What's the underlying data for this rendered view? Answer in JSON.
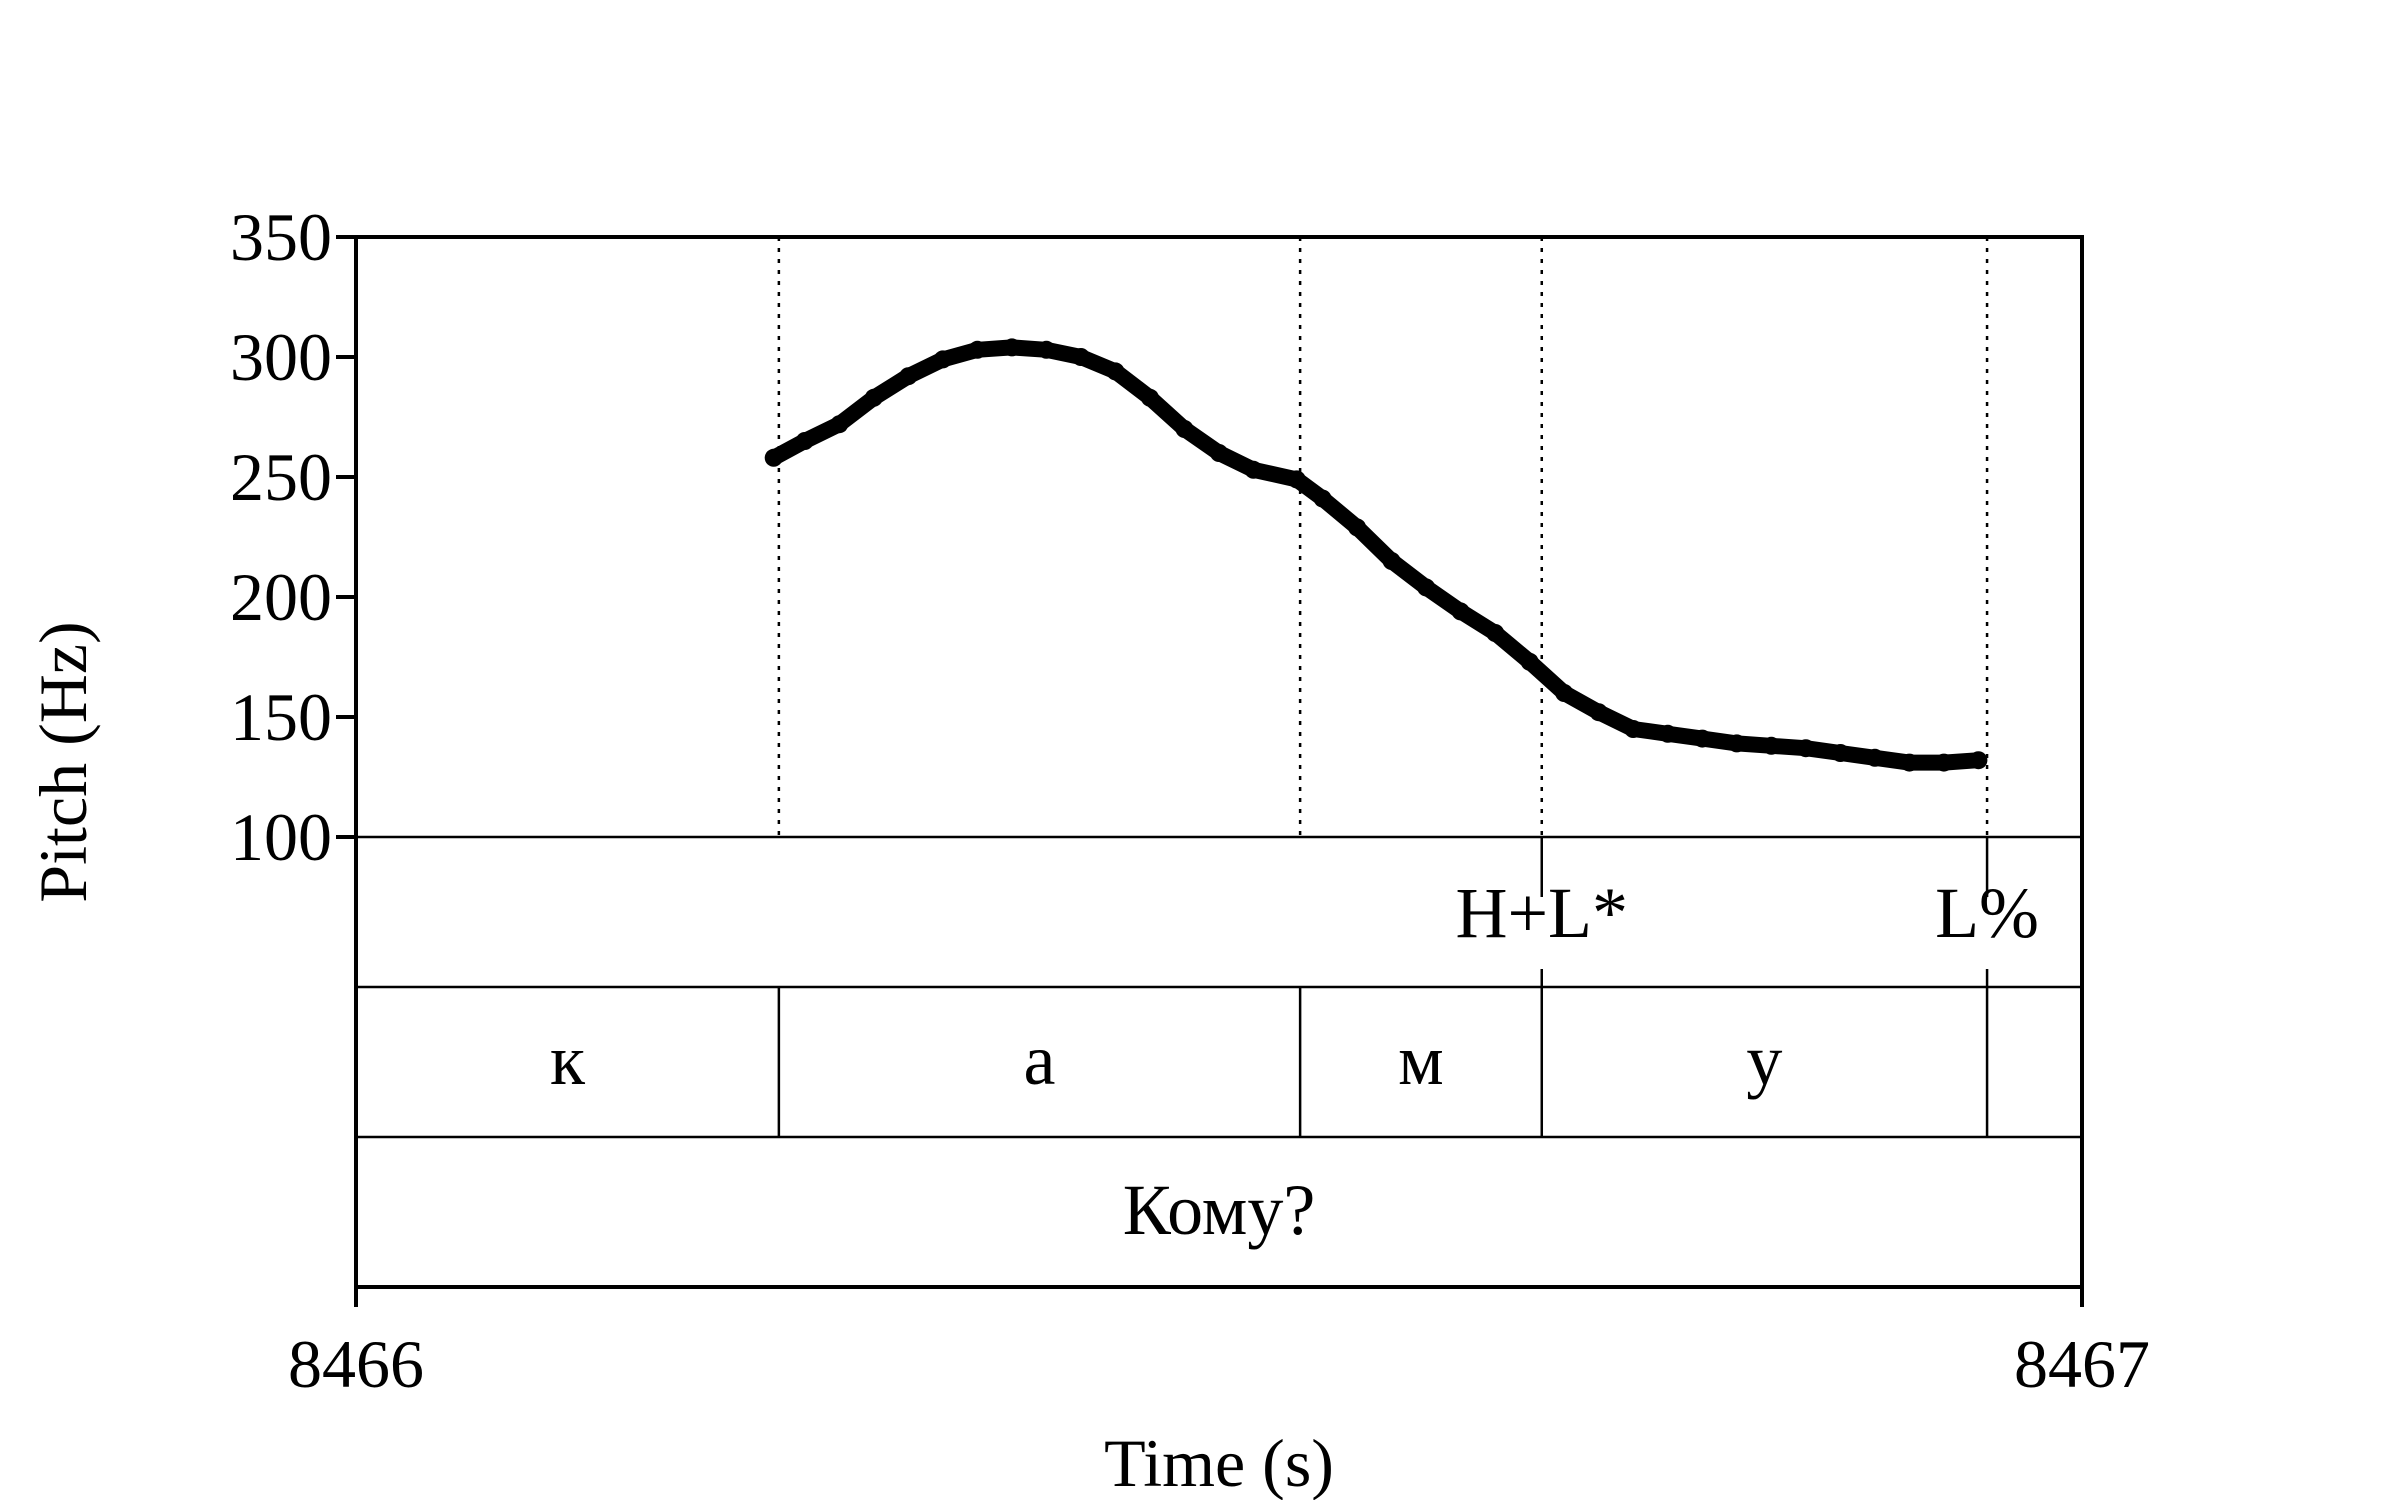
{
  "chart_data": {
    "type": "line",
    "xlabel": "Time (s)",
    "ylabel": "Pitch (Hz)",
    "xlim": [
      8466,
      8467
    ],
    "ylim": [
      100,
      350
    ],
    "x_ticks": [
      "8466",
      "8467"
    ],
    "y_ticks": [
      100,
      150,
      200,
      250,
      300,
      350
    ],
    "grid": false,
    "line_color": "#000000",
    "series": [
      {
        "x": [
          8466.242,
          8466.26,
          8466.28,
          8466.3,
          8466.32,
          8466.34,
          8466.36,
          8466.38,
          8466.4,
          8466.42,
          8466.44,
          8466.46,
          8466.48,
          8466.5,
          8466.52,
          8466.545,
          8466.56,
          8466.58,
          8466.6,
          8466.62,
          8466.64,
          8466.66,
          8466.68,
          8466.7,
          8466.72,
          8466.74,
          8466.76,
          8466.78,
          8466.8,
          8466.82,
          8466.84,
          8466.86,
          8466.88,
          8466.9,
          8466.92,
          8466.94
        ],
        "y": [
          258,
          265,
          272,
          283,
          292,
          299,
          303,
          304,
          303,
          300,
          294,
          283,
          270,
          260,
          253,
          249,
          241,
          229,
          215,
          204,
          194,
          185,
          173,
          160,
          152,
          145,
          143,
          141,
          139,
          138,
          137,
          135,
          133,
          131,
          131,
          132
        ]
      }
    ],
    "boundaries": [
      8466.245,
      8466.547,
      8466.687,
      8466.945
    ],
    "tiers": [
      {
        "type": "points",
        "labels": [
          {
            "text": "H+L*",
            "time": 8466.687
          },
          {
            "text": "L%",
            "time": 8466.945
          }
        ]
      },
      {
        "type": "intervals",
        "labels": [
          {
            "text": "к",
            "start": 8466.0,
            "end": 8466.245
          },
          {
            "text": "а",
            "start": 8466.245,
            "end": 8466.547
          },
          {
            "text": "м",
            "start": 8466.547,
            "end": 8466.687
          },
          {
            "text": "у",
            "start": 8466.687,
            "end": 8466.945
          },
          {
            "text": "",
            "start": 8466.945,
            "end": 8467.0
          }
        ]
      },
      {
        "type": "intervals",
        "labels": [
          {
            "text": "Кому?",
            "start": 8466.0,
            "end": 8467.0
          }
        ]
      }
    ]
  }
}
